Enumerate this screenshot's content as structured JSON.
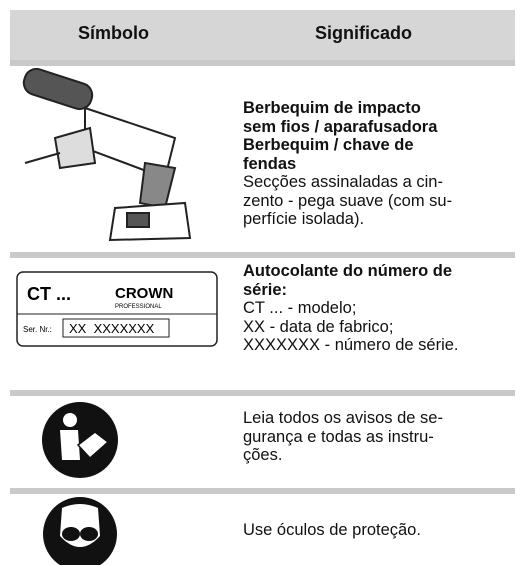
{
  "header": {
    "symbol": "Símbolo",
    "meaning": "Significado"
  },
  "rows": [
    {
      "bold": [
        "Berbequim de impacto",
        "sem fios / aparafusadora",
        "Berbequim / chave de",
        "fendas"
      ],
      "text": [
        "Secções assinaladas a cin-",
        "zento - pega suave (com su-",
        "perfície isolada)."
      ]
    },
    {
      "label": {
        "model": "CT ...",
        "brand": "CROWN",
        "sub": "PROFESSIONAL",
        "serial_caption": "Ser. Nr.:",
        "serial": "XX  XXXXXXX"
      },
      "bold": [
        "Autocolante do número de",
        "série:"
      ],
      "text": [
        "CT ... - modelo;",
        "XX - data de fabrico;",
        "XXXXXXX - número de série."
      ]
    },
    {
      "bold": [],
      "text": [
        "Leia todos os avisos de se-",
        "gurança e todas as instru-",
        "ções."
      ]
    },
    {
      "bold": [],
      "text": [
        "Use óculos de proteção."
      ]
    }
  ]
}
